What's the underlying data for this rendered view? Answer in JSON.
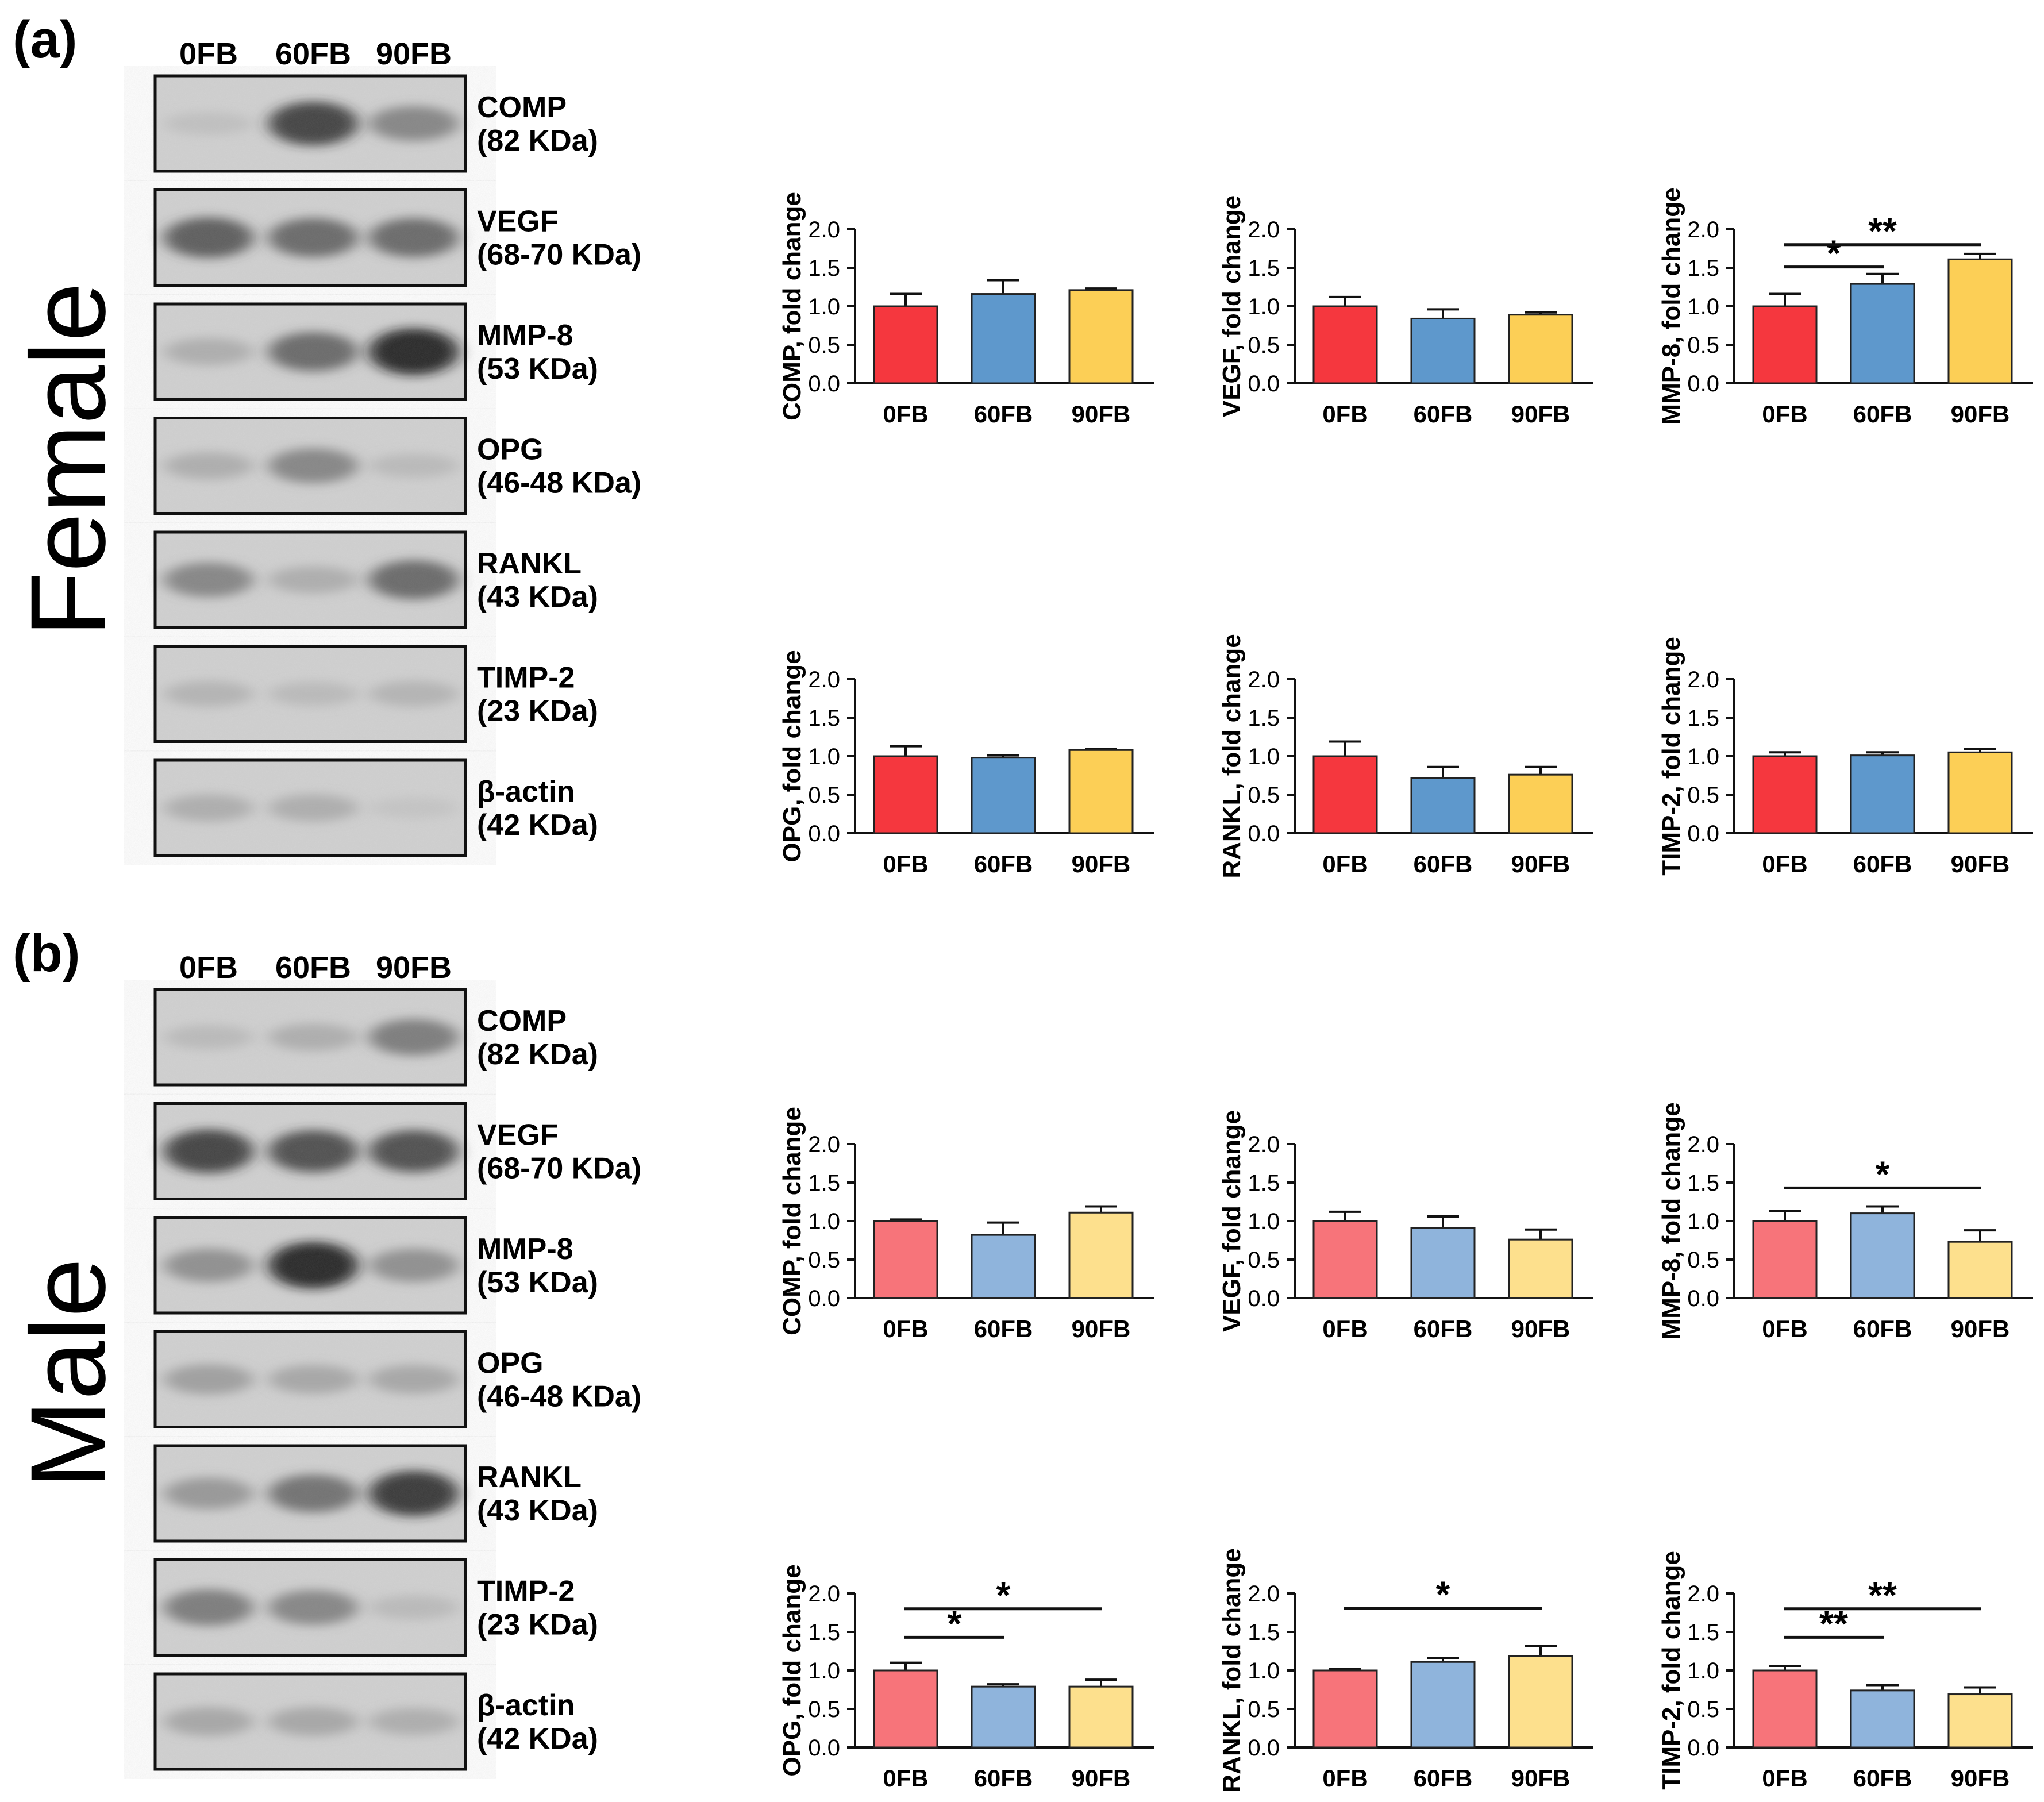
{
  "panels": [
    {
      "id": "a",
      "letter": "(a)",
      "sex_label": "Female",
      "lane_labels": [
        "0FB",
        "60FB",
        "90FB"
      ],
      "blots": [
        {
          "name": "COMP",
          "kda": "(82 KDa)",
          "intensity": [
            0.15,
            0.85,
            0.55
          ]
        },
        {
          "name": "VEGF",
          "kda": "(68-70 KDa)",
          "intensity": [
            0.75,
            0.7,
            0.7
          ]
        },
        {
          "name": "MMP-8",
          "kda": "(53 KDa)",
          "intensity": [
            0.3,
            0.7,
            0.95
          ]
        },
        {
          "name": "OPG",
          "kda": "(46-48 KDa)",
          "intensity": [
            0.3,
            0.55,
            0.2
          ]
        },
        {
          "name": "RANKL",
          "kda": "(43 KDa)",
          "intensity": [
            0.55,
            0.3,
            0.7
          ]
        },
        {
          "name": "TIMP-2",
          "kda": "(23 KDa)",
          "intensity": [
            0.25,
            0.2,
            0.25
          ]
        },
        {
          "name": "β-actin",
          "kda": "(42 KDa)",
          "intensity": [
            0.3,
            0.3,
            0.1
          ]
        }
      ]
    },
    {
      "id": "b",
      "letter": "(b)",
      "sex_label": "Male",
      "lane_labels": [
        "0FB",
        "60FB",
        "90FB"
      ],
      "blots": [
        {
          "name": "COMP",
          "kda": "(82 KDa)",
          "intensity": [
            0.2,
            0.3,
            0.6
          ]
        },
        {
          "name": "VEGF",
          "kda": "(68-70 KDa)",
          "intensity": [
            0.85,
            0.8,
            0.8
          ]
        },
        {
          "name": "MMP-8",
          "kda": "(53 KDa)",
          "intensity": [
            0.5,
            0.95,
            0.5
          ]
        },
        {
          "name": "OPG",
          "kda": "(46-48 KDa)",
          "intensity": [
            0.4,
            0.35,
            0.35
          ]
        },
        {
          "name": "RANKL",
          "kda": "(43 KDa)",
          "intensity": [
            0.45,
            0.65,
            0.9
          ]
        },
        {
          "name": "TIMP-2",
          "kda": "(23 KDa)",
          "intensity": [
            0.6,
            0.55,
            0.2
          ]
        },
        {
          "name": "β-actin",
          "kda": "(42 KDa)",
          "intensity": [
            0.35,
            0.35,
            0.3
          ]
        }
      ]
    }
  ],
  "colors": {
    "female": [
      "#f5373e",
      "#5e98cc",
      "#fccf56"
    ],
    "male": [
      "#f7747a",
      "#8fb4dc",
      "#fde08d"
    ],
    "axis": "#111111"
  },
  "chart_data": [
    {
      "type": "bar",
      "panel": "a",
      "categories": [
        "0FB",
        "60FB",
        "90FB"
      ],
      "values": [
        1.0,
        1.16,
        1.21
      ],
      "errors": [
        0.16,
        0.18,
        0.02
      ],
      "ylabel": "COMP, fold change",
      "ylim": [
        0,
        2.0
      ],
      "yticks": [
        "0.0",
        "0.5",
        "1.0",
        "1.5",
        "2.0"
      ],
      "significance": []
    },
    {
      "type": "bar",
      "panel": "a",
      "categories": [
        "0FB",
        "60FB",
        "90FB"
      ],
      "values": [
        1.0,
        0.84,
        0.89
      ],
      "errors": [
        0.12,
        0.12,
        0.03
      ],
      "ylabel": "VEGF, fold change",
      "ylim": [
        0,
        2.0
      ],
      "yticks": [
        "0.0",
        "0.5",
        "1.0",
        "1.5",
        "2.0"
      ],
      "significance": []
    },
    {
      "type": "bar",
      "panel": "a",
      "categories": [
        "0FB",
        "60FB",
        "90FB"
      ],
      "values": [
        1.0,
        1.29,
        1.61
      ],
      "errors": [
        0.16,
        0.13,
        0.07
      ],
      "ylabel": "MMP-8, fold change",
      "ylim": [
        0,
        2.0
      ],
      "yticks": [
        "0.0",
        "0.5",
        "1.0",
        "1.5",
        "2.0"
      ],
      "significance": [
        {
          "from": 0,
          "to": 1,
          "y": 1.51,
          "label": "*"
        },
        {
          "from": 0,
          "to": 2,
          "y": 1.8,
          "label": "**"
        }
      ]
    },
    {
      "type": "bar",
      "panel": "a",
      "categories": [
        "0FB",
        "60FB",
        "90FB"
      ],
      "values": [
        1.0,
        0.98,
        1.08
      ],
      "errors": [
        0.13,
        0.03,
        0.01
      ],
      "ylabel": "OPG, fold change",
      "ylim": [
        0,
        2.0
      ],
      "yticks": [
        "0.0",
        "0.5",
        "1.0",
        "1.5",
        "2.0"
      ],
      "significance": []
    },
    {
      "type": "bar",
      "panel": "a",
      "categories": [
        "0FB",
        "60FB",
        "90FB"
      ],
      "values": [
        1.0,
        0.72,
        0.76
      ],
      "errors": [
        0.19,
        0.14,
        0.1
      ],
      "ylabel": "RANKL, fold change",
      "ylim": [
        0,
        2.0
      ],
      "yticks": [
        "0.0",
        "0.5",
        "1.0",
        "1.5",
        "2.0"
      ],
      "significance": []
    },
    {
      "type": "bar",
      "panel": "a",
      "categories": [
        "0FB",
        "60FB",
        "90FB"
      ],
      "values": [
        1.0,
        1.01,
        1.05
      ],
      "errors": [
        0.05,
        0.04,
        0.04
      ],
      "ylabel": "TIMP-2, fold change",
      "ylim": [
        0,
        2.0
      ],
      "yticks": [
        "0.0",
        "0.5",
        "1.0",
        "1.5",
        "2.0"
      ],
      "significance": []
    },
    {
      "type": "bar",
      "panel": "b",
      "categories": [
        "0FB",
        "60FB",
        "90FB"
      ],
      "values": [
        1.0,
        0.82,
        1.11
      ],
      "errors": [
        0.02,
        0.16,
        0.08
      ],
      "ylabel": "COMP, fold change",
      "ylim": [
        0,
        2.0
      ],
      "yticks": [
        "0.0",
        "0.5",
        "1.0",
        "1.5",
        "2.0"
      ],
      "significance": []
    },
    {
      "type": "bar",
      "panel": "b",
      "categories": [
        "0FB",
        "60FB",
        "90FB"
      ],
      "values": [
        1.0,
        0.91,
        0.76
      ],
      "errors": [
        0.12,
        0.15,
        0.13
      ],
      "ylabel": "VEGF, fold change",
      "ylim": [
        0,
        2.0
      ],
      "yticks": [
        "0.0",
        "0.5",
        "1.0",
        "1.5",
        "2.0"
      ],
      "significance": []
    },
    {
      "type": "bar",
      "panel": "b",
      "categories": [
        "0FB",
        "60FB",
        "90FB"
      ],
      "values": [
        1.0,
        1.1,
        0.73
      ],
      "errors": [
        0.13,
        0.09,
        0.15
      ],
      "ylabel": "MMP-8, fold change",
      "ylim": [
        0,
        2.0
      ],
      "yticks": [
        "0.0",
        "0.5",
        "1.0",
        "1.5",
        "2.0"
      ],
      "significance": [
        {
          "from": 0,
          "to": 2,
          "y": 1.43,
          "label": "*"
        }
      ]
    },
    {
      "type": "bar",
      "panel": "b",
      "categories": [
        "0FB",
        "60FB",
        "90FB"
      ],
      "values": [
        1.0,
        0.79,
        0.79
      ],
      "errors": [
        0.1,
        0.03,
        0.09
      ],
      "ylabel": "OPG, fold change",
      "ylim": [
        0,
        2.0
      ],
      "yticks": [
        "0.0",
        "0.5",
        "1.0",
        "1.5",
        "2.0"
      ],
      "significance": [
        {
          "from": 0,
          "to": 1,
          "y": 1.43,
          "label": "*"
        },
        {
          "from": 0,
          "to": 2,
          "y": 1.8,
          "label": "*"
        }
      ]
    },
    {
      "type": "bar",
      "panel": "b",
      "categories": [
        "0FB",
        "60FB",
        "90FB"
      ],
      "values": [
        1.0,
        1.11,
        1.19
      ],
      "errors": [
        0.02,
        0.05,
        0.13
      ],
      "ylabel": "RANKL, fold change",
      "ylim": [
        0,
        2.0
      ],
      "yticks": [
        "0.0",
        "0.5",
        "1.0",
        "1.5",
        "2.0"
      ],
      "significance": [
        {
          "from": 0,
          "to": 2,
          "y": 1.81,
          "label": "*"
        }
      ]
    },
    {
      "type": "bar",
      "panel": "b",
      "categories": [
        "0FB",
        "60FB",
        "90FB"
      ],
      "values": [
        1.0,
        0.74,
        0.69
      ],
      "errors": [
        0.06,
        0.07,
        0.09
      ],
      "ylabel": "TIMP-2, fold change",
      "ylim": [
        0,
        2.0
      ],
      "yticks": [
        "0.0",
        "0.5",
        "1.0",
        "1.5",
        "2.0"
      ],
      "significance": [
        {
          "from": 0,
          "to": 1,
          "y": 1.43,
          "label": "**"
        },
        {
          "from": 0,
          "to": 2,
          "y": 1.8,
          "label": "**"
        }
      ]
    }
  ]
}
